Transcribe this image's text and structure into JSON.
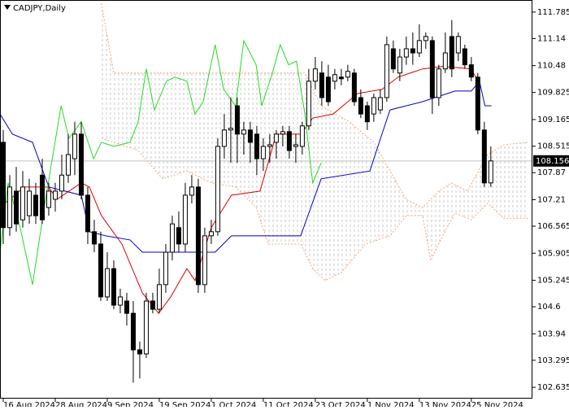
{
  "chart_data": {
    "type": "candlestick",
    "title": "CADJPY,Daily",
    "categories": [
      "16 Aug 2024",
      null,
      null,
      null,
      null,
      null,
      null,
      null,
      "28 Aug 2024",
      null,
      null,
      null,
      null,
      null,
      null,
      null,
      "9 Sep 2024",
      null,
      null,
      null,
      null,
      null,
      null,
      null,
      "19 Sep 2024",
      null,
      null,
      null,
      null,
      null,
      null,
      null,
      "1 Oct 2024",
      null,
      null,
      null,
      null,
      null,
      null,
      null,
      "11 Oct 2024",
      null,
      null,
      null,
      null,
      null,
      null,
      null,
      "23 Oct 2024",
      null,
      null,
      null,
      null,
      null,
      null,
      null,
      "1 Nov 2024",
      null,
      null,
      null,
      null,
      null,
      null,
      null,
      "13 Nov 2024",
      null,
      null,
      null,
      null,
      null,
      null,
      null,
      "25 Nov 2024",
      null,
      null,
      null
    ],
    "open": [
      108.61,
      106.53,
      107.42,
      106.72,
      106.82,
      107.32,
      107.81,
      107.02,
      107.22,
      107.42,
      107.81,
      108.21,
      108.81,
      107.32,
      106.43,
      106.13,
      104.84,
      105.53,
      104.64,
      104.74,
      104.44,
      103.55,
      103.45,
      104.74,
      104.54,
      105.14,
      105.93,
      106.53,
      106.13,
      107.32,
      107.52,
      105.14,
      106.33,
      106.43,
      108.51,
      108.91,
      109.5,
      108.81,
      108.91,
      108.81,
      108.21,
      108.51,
      108.61,
      108.81,
      108.87,
      108.51,
      108.51,
      109.01,
      110.1,
      110.3,
      110.2,
      110.1,
      110.2,
      110.2,
      110.3,
      109.7,
      109.5,
      109.3,
      109.4,
      109.7,
      110.89,
      110.3,
      110.69,
      110.89,
      110.79,
      111.09,
      111.09,
      109.7,
      110.4,
      111.19,
      110.79,
      110.89,
      110.5,
      110.2,
      108.91,
      107.62
    ],
    "high": [
      108.91,
      107.81,
      108.01,
      107.91,
      107.72,
      107.62,
      108.21,
      107.62,
      107.62,
      108.31,
      108.81,
      109.11,
      109.11,
      107.52,
      106.72,
      106.43,
      105.93,
      105.73,
      105.04,
      104.94,
      104.74,
      103.75,
      104.94,
      104.94,
      105.53,
      106.13,
      106.82,
      106.92,
      107.62,
      107.81,
      107.72,
      106.53,
      106.72,
      108.71,
      109.3,
      109.7,
      109.7,
      109.11,
      109.11,
      109.01,
      108.71,
      108.81,
      108.91,
      109.01,
      109.01,
      108.81,
      109.11,
      110.4,
      110.69,
      110.59,
      110.5,
      110.4,
      110.4,
      110.5,
      110.4,
      109.9,
      109.6,
      109.8,
      109.9,
      111.19,
      111.09,
      110.89,
      111.19,
      111.29,
      111.49,
      111.29,
      111.19,
      110.5,
      111.29,
      111.59,
      111.29,
      110.99,
      110.69,
      110.3,
      109.11,
      108.51
    ],
    "low": [
      106.13,
      106.33,
      106.43,
      106.53,
      106.62,
      106.62,
      106.62,
      106.82,
      106.92,
      107.22,
      107.62,
      107.81,
      107.22,
      106.13,
      105.93,
      104.74,
      104.74,
      104.54,
      104.44,
      104.14,
      102.75,
      102.85,
      103.35,
      104.44,
      104.44,
      104.94,
      105.73,
      105.93,
      105.93,
      107.12,
      104.94,
      104.94,
      106.13,
      106.33,
      108.21,
      108.11,
      108.11,
      108.31,
      108.11,
      107.81,
      107.91,
      108.11,
      108.21,
      108.51,
      108.21,
      108.11,
      108.31,
      108.91,
      109.9,
      109.5,
      109.5,
      109.9,
      110.0,
      110.1,
      109.5,
      109.2,
      108.91,
      109.11,
      109.3,
      109.6,
      110.3,
      110.1,
      110.5,
      110.5,
      110.69,
      110.89,
      109.3,
      109.5,
      110.3,
      110.2,
      110.59,
      110.4,
      110.1,
      108.81,
      107.52,
      107.52
    ],
    "close": [
      106.53,
      107.52,
      106.62,
      107.52,
      107.42,
      106.82,
      106.72,
      107.42,
      107.42,
      107.81,
      108.31,
      108.81,
      107.32,
      106.43,
      106.13,
      104.84,
      105.53,
      104.64,
      104.84,
      104.44,
      103.55,
      103.45,
      104.74,
      104.54,
      105.14,
      105.93,
      106.62,
      106.13,
      107.32,
      107.52,
      105.14,
      106.33,
      106.43,
      108.51,
      108.91,
      108.95,
      108.81,
      108.91,
      108.61,
      108.21,
      108.51,
      108.55,
      108.81,
      108.87,
      108.41,
      108.55,
      109.01,
      110.1,
      110.4,
      109.7,
      109.6,
      110.26,
      110.16,
      110.34,
      109.6,
      109.3,
      109.11,
      109.7,
      109.7,
      110.99,
      110.4,
      110.69,
      110.89,
      110.79,
      111.09,
      111.19,
      109.7,
      110.4,
      110.79,
      110.4,
      111.19,
      110.5,
      110.2,
      108.91,
      107.62,
      108.156
    ],
    "lines": [
      {
        "color": "#e00000",
        "x": [
          -0.5,
          3.25,
          7,
          8.25,
          12,
          13.25,
          15.1,
          18.25,
          21.4,
          23.9,
          25.75,
          28.25,
          29.5,
          32,
          35.1,
          39.5,
          42,
          45.75,
          47.6,
          50.75,
          54.5,
          58.25,
          60.75,
          64.5,
          67.6,
          72,
          73
        ],
        "values": [
          107.02,
          107.52,
          107.52,
          107.22,
          107.62,
          107.52,
          106.82,
          106.13,
          104.94,
          104.44,
          104.84,
          105.53,
          105.24,
          106.53,
          107.32,
          107.42,
          108.81,
          108.81,
          109.2,
          109.3,
          109.8,
          109.9,
          110.2,
          110.4,
          110.46,
          110.4,
          110.1
        ]
      },
      {
        "color": "#0000c8",
        "x": [
          -0.5,
          1.4,
          4.5,
          7,
          12,
          13.25,
          15.75,
          19.5,
          21.4,
          32.6,
          35.1,
          45.75,
          48.9,
          56.4,
          58.25,
          59.5,
          64.5,
          69.5,
          72,
          73.25,
          74.1,
          75.1
        ],
        "values": [
          109.3,
          108.81,
          108.61,
          107.52,
          107.32,
          106.43,
          106.33,
          106.23,
          105.93,
          105.93,
          106.33,
          106.33,
          107.72,
          107.91,
          108.81,
          109.4,
          109.6,
          109.86,
          109.86,
          110.1,
          109.5,
          109.5
        ]
      },
      {
        "color": "#22dd22",
        "x": [
          -0.5,
          0.75,
          2.6,
          4.5,
          6.4,
          8.9,
          10.1,
          12,
          13.9,
          15.1,
          17,
          19.5,
          20.75,
          22,
          23.25,
          25.1,
          26.4,
          28.25,
          29.5,
          30.75,
          32.6,
          33.9,
          35.75,
          37,
          38.9,
          39.75,
          41.4,
          42.6,
          43.9,
          45.1,
          46.4,
          47.6,
          48.9
        ],
        "values": [
          105.93,
          107.62,
          106.53,
          105.14,
          107.12,
          109.5,
          108.71,
          109.11,
          108.21,
          108.61,
          108.51,
          108.61,
          109.11,
          110.4,
          109.4,
          110.1,
          110.2,
          110.1,
          109.3,
          109.6,
          110.99,
          109.9,
          109.5,
          111.09,
          110.5,
          109.5,
          110.3,
          110.99,
          110.5,
          110.59,
          109.3,
          107.62,
          108.11
        ]
      }
    ],
    "cloud": [
      {
        "color": "#f4a878",
        "x": [
          15.1,
          17,
          46.4,
          48.9,
          53.25,
          57,
          59.5,
          62,
          64.5,
          67,
          68.9,
          71.4,
          74.5,
          77,
          80.75
        ],
        "values": [
          112.0,
          110.3,
          110.3,
          109.5,
          109.11,
          108.61,
          107.91,
          107.22,
          107.02,
          107.42,
          107.62,
          107.42,
          108.31,
          108.55,
          108.61
        ]
      },
      {
        "color": "#f4a878",
        "x": [
          15.1,
          17,
          20.75,
          24.5,
          28.25,
          32,
          35.75,
          38.9,
          40.75,
          45.75,
          47.6,
          49.5,
          52,
          55.75,
          59.5,
          62,
          64.5,
          65.75,
          67.6,
          69.5,
          72,
          74.5,
          77,
          80.75
        ],
        "values": [
          108.71,
          108.61,
          108.41,
          107.72,
          107.91,
          107.62,
          107.52,
          107.02,
          106.13,
          106.13,
          105.53,
          105.24,
          105.43,
          106.13,
          106.33,
          106.82,
          106.82,
          105.73,
          106.33,
          106.88,
          106.72,
          107.12,
          106.76,
          106.76
        ]
      }
    ],
    "price_line": 108.156,
    "xlim": [
      -0.5,
      81.4
    ],
    "ylim": [
      102.36,
      112.08
    ],
    "yticks": [
      111.785,
      111.14,
      110.48,
      109.825,
      109.165,
      108.515,
      107.87,
      107.21,
      106.565,
      105.905,
      105.245,
      104.6,
      103.94,
      103.295,
      102.635
    ]
  }
}
